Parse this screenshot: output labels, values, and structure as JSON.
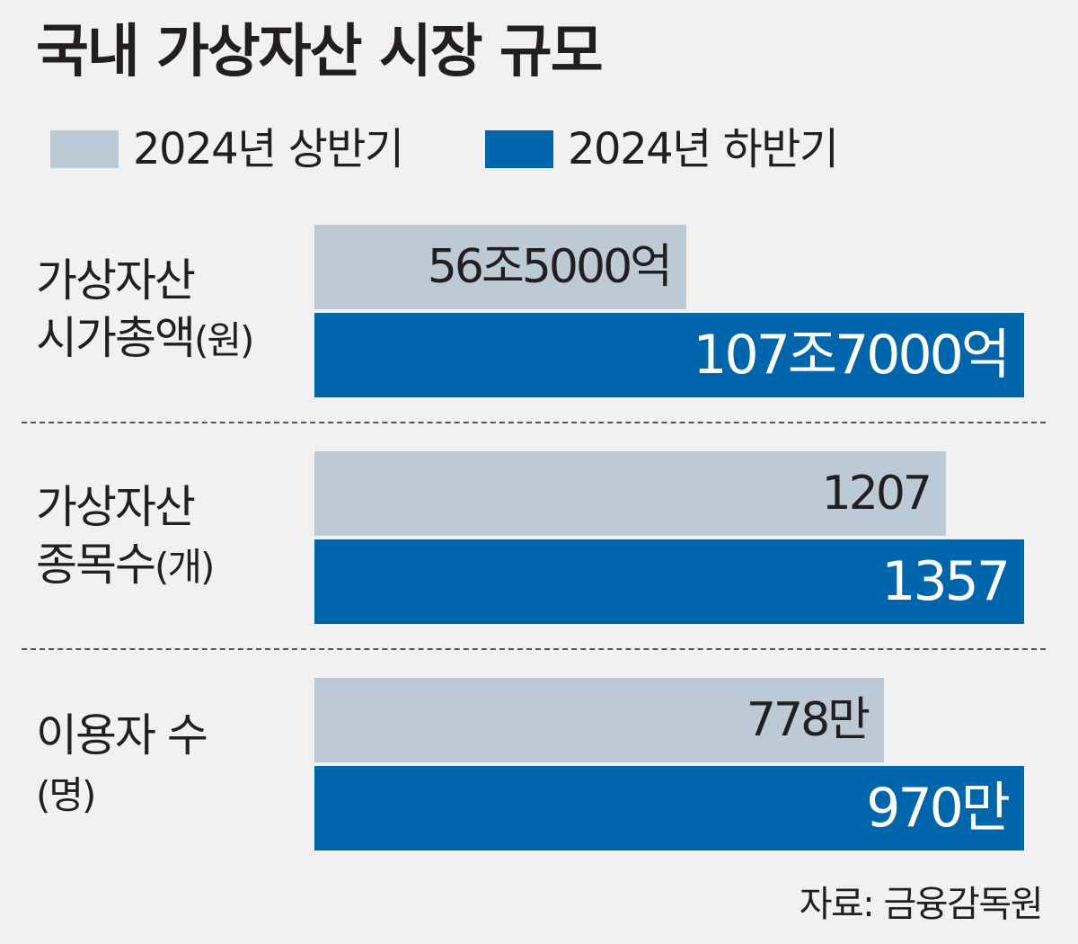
{
  "chart_data": {
    "type": "bar",
    "orientation": "horizontal",
    "title": "국내 가상자산 시장 규모",
    "legend_placement": "top-left",
    "grid": false,
    "colors": {
      "2024년 상반기": "#bccad6",
      "2024년 하반기": "#0066ab"
    },
    "series": [
      {
        "name": "2024년 상반기",
        "color": "#bccad6"
      },
      {
        "name": "2024년 하반기",
        "color": "#0066ab"
      }
    ],
    "groups": [
      {
        "label_lines": [
          "가상자산",
          "시가총액"
        ],
        "unit": "(원)",
        "bars": [
          {
            "series": "2024년 상반기",
            "value": 56.5,
            "label": "56조5000억"
          },
          {
            "series": "2024년 하반기",
            "value": 107.7,
            "label": "107조7000억"
          }
        ]
      },
      {
        "label_lines": [
          "가상자산",
          "종목수"
        ],
        "unit": "(개)",
        "bars": [
          {
            "series": "2024년 상반기",
            "value": 1207,
            "label": "1207"
          },
          {
            "series": "2024년 하반기",
            "value": 1357,
            "label": "1357"
          }
        ]
      },
      {
        "label_lines": [
          "이용자 수",
          ""
        ],
        "unit": "(명)",
        "bars": [
          {
            "series": "2024년 상반기",
            "value": 778,
            "label": "778만"
          },
          {
            "series": "2024년 하반기",
            "value": 970,
            "label": "970만"
          }
        ]
      }
    ],
    "source": "자료: 금융감독원"
  }
}
